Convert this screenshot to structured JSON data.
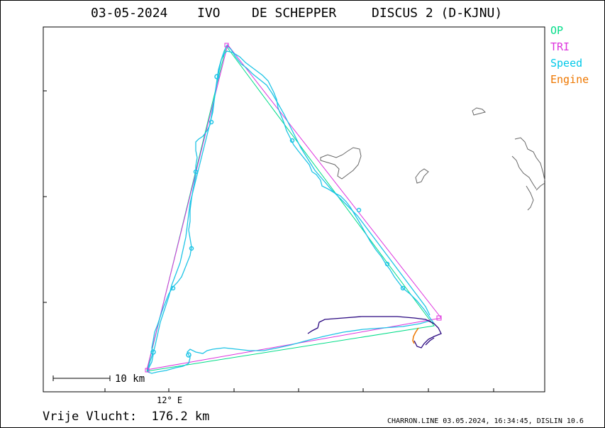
{
  "header": {
    "date": "03-05-2024",
    "pilot_first": "IVO",
    "pilot_last": "DE SCHEPPER",
    "glider": "DISCUS 2 (D-KJNU)"
  },
  "legend": {
    "op": {
      "label": "OP",
      "color": "#00dd88"
    },
    "tri": {
      "label": "TRI",
      "color": "#dd33dd"
    },
    "speed": {
      "label": "Speed",
      "color": "#00c8e8"
    },
    "engine": {
      "label": "Engine",
      "color": "#ee7700"
    }
  },
  "map": {
    "longitude_label": "12° E",
    "scale_label": "10 km",
    "colors": {
      "frame": "#000000",
      "coastline": "#666666",
      "track": "#1ec4e6",
      "track_low": "#2a0880",
      "op_line": "#00dd88",
      "tri_line": "#dd33dd",
      "engine": "#ee7700"
    }
  },
  "summary": {
    "text": "Vrije Vlucht:  176.2 km"
  },
  "footer": {
    "text": "CHARRON.LINE 03.05.2024, 16:34:45, DISLIN 10.6"
  }
}
